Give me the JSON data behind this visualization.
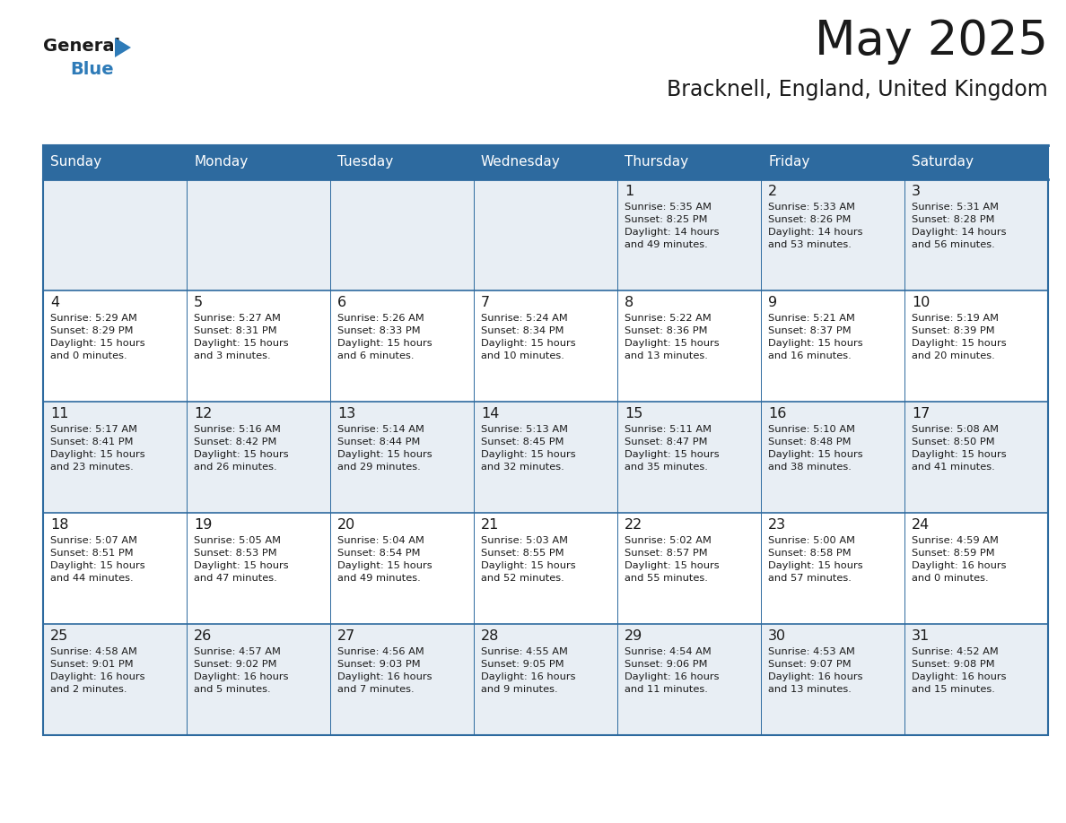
{
  "title": "May 2025",
  "subtitle": "Bracknell, England, United Kingdom",
  "header_bg": "#2D6A9F",
  "header_text_color": "#FFFFFF",
  "cell_bg_odd": "#E8EEF4",
  "cell_bg_even": "#FFFFFF",
  "grid_line_color": "#2D6A9F",
  "day_headers": [
    "Sunday",
    "Monday",
    "Tuesday",
    "Wednesday",
    "Thursday",
    "Friday",
    "Saturday"
  ],
  "calendar": [
    [
      {
        "day": "",
        "info": ""
      },
      {
        "day": "",
        "info": ""
      },
      {
        "day": "",
        "info": ""
      },
      {
        "day": "",
        "info": ""
      },
      {
        "day": "1",
        "info": "Sunrise: 5:35 AM\nSunset: 8:25 PM\nDaylight: 14 hours\nand 49 minutes."
      },
      {
        "day": "2",
        "info": "Sunrise: 5:33 AM\nSunset: 8:26 PM\nDaylight: 14 hours\nand 53 minutes."
      },
      {
        "day": "3",
        "info": "Sunrise: 5:31 AM\nSunset: 8:28 PM\nDaylight: 14 hours\nand 56 minutes."
      }
    ],
    [
      {
        "day": "4",
        "info": "Sunrise: 5:29 AM\nSunset: 8:29 PM\nDaylight: 15 hours\nand 0 minutes."
      },
      {
        "day": "5",
        "info": "Sunrise: 5:27 AM\nSunset: 8:31 PM\nDaylight: 15 hours\nand 3 minutes."
      },
      {
        "day": "6",
        "info": "Sunrise: 5:26 AM\nSunset: 8:33 PM\nDaylight: 15 hours\nand 6 minutes."
      },
      {
        "day": "7",
        "info": "Sunrise: 5:24 AM\nSunset: 8:34 PM\nDaylight: 15 hours\nand 10 minutes."
      },
      {
        "day": "8",
        "info": "Sunrise: 5:22 AM\nSunset: 8:36 PM\nDaylight: 15 hours\nand 13 minutes."
      },
      {
        "day": "9",
        "info": "Sunrise: 5:21 AM\nSunset: 8:37 PM\nDaylight: 15 hours\nand 16 minutes."
      },
      {
        "day": "10",
        "info": "Sunrise: 5:19 AM\nSunset: 8:39 PM\nDaylight: 15 hours\nand 20 minutes."
      }
    ],
    [
      {
        "day": "11",
        "info": "Sunrise: 5:17 AM\nSunset: 8:41 PM\nDaylight: 15 hours\nand 23 minutes."
      },
      {
        "day": "12",
        "info": "Sunrise: 5:16 AM\nSunset: 8:42 PM\nDaylight: 15 hours\nand 26 minutes."
      },
      {
        "day": "13",
        "info": "Sunrise: 5:14 AM\nSunset: 8:44 PM\nDaylight: 15 hours\nand 29 minutes."
      },
      {
        "day": "14",
        "info": "Sunrise: 5:13 AM\nSunset: 8:45 PM\nDaylight: 15 hours\nand 32 minutes."
      },
      {
        "day": "15",
        "info": "Sunrise: 5:11 AM\nSunset: 8:47 PM\nDaylight: 15 hours\nand 35 minutes."
      },
      {
        "day": "16",
        "info": "Sunrise: 5:10 AM\nSunset: 8:48 PM\nDaylight: 15 hours\nand 38 minutes."
      },
      {
        "day": "17",
        "info": "Sunrise: 5:08 AM\nSunset: 8:50 PM\nDaylight: 15 hours\nand 41 minutes."
      }
    ],
    [
      {
        "day": "18",
        "info": "Sunrise: 5:07 AM\nSunset: 8:51 PM\nDaylight: 15 hours\nand 44 minutes."
      },
      {
        "day": "19",
        "info": "Sunrise: 5:05 AM\nSunset: 8:53 PM\nDaylight: 15 hours\nand 47 minutes."
      },
      {
        "day": "20",
        "info": "Sunrise: 5:04 AM\nSunset: 8:54 PM\nDaylight: 15 hours\nand 49 minutes."
      },
      {
        "day": "21",
        "info": "Sunrise: 5:03 AM\nSunset: 8:55 PM\nDaylight: 15 hours\nand 52 minutes."
      },
      {
        "day": "22",
        "info": "Sunrise: 5:02 AM\nSunset: 8:57 PM\nDaylight: 15 hours\nand 55 minutes."
      },
      {
        "day": "23",
        "info": "Sunrise: 5:00 AM\nSunset: 8:58 PM\nDaylight: 15 hours\nand 57 minutes."
      },
      {
        "day": "24",
        "info": "Sunrise: 4:59 AM\nSunset: 8:59 PM\nDaylight: 16 hours\nand 0 minutes."
      }
    ],
    [
      {
        "day": "25",
        "info": "Sunrise: 4:58 AM\nSunset: 9:01 PM\nDaylight: 16 hours\nand 2 minutes."
      },
      {
        "day": "26",
        "info": "Sunrise: 4:57 AM\nSunset: 9:02 PM\nDaylight: 16 hours\nand 5 minutes."
      },
      {
        "day": "27",
        "info": "Sunrise: 4:56 AM\nSunset: 9:03 PM\nDaylight: 16 hours\nand 7 minutes."
      },
      {
        "day": "28",
        "info": "Sunrise: 4:55 AM\nSunset: 9:05 PM\nDaylight: 16 hours\nand 9 minutes."
      },
      {
        "day": "29",
        "info": "Sunrise: 4:54 AM\nSunset: 9:06 PM\nDaylight: 16 hours\nand 11 minutes."
      },
      {
        "day": "30",
        "info": "Sunrise: 4:53 AM\nSunset: 9:07 PM\nDaylight: 16 hours\nand 13 minutes."
      },
      {
        "day": "31",
        "info": "Sunrise: 4:52 AM\nSunset: 9:08 PM\nDaylight: 16 hours\nand 15 minutes."
      }
    ]
  ],
  "logo_general_color": "#1A1A1A",
  "logo_blue_color": "#2E7BB8",
  "logo_triangle_color": "#2E7BB8",
  "fig_width": 11.88,
  "fig_height": 9.18,
  "dpi": 100
}
